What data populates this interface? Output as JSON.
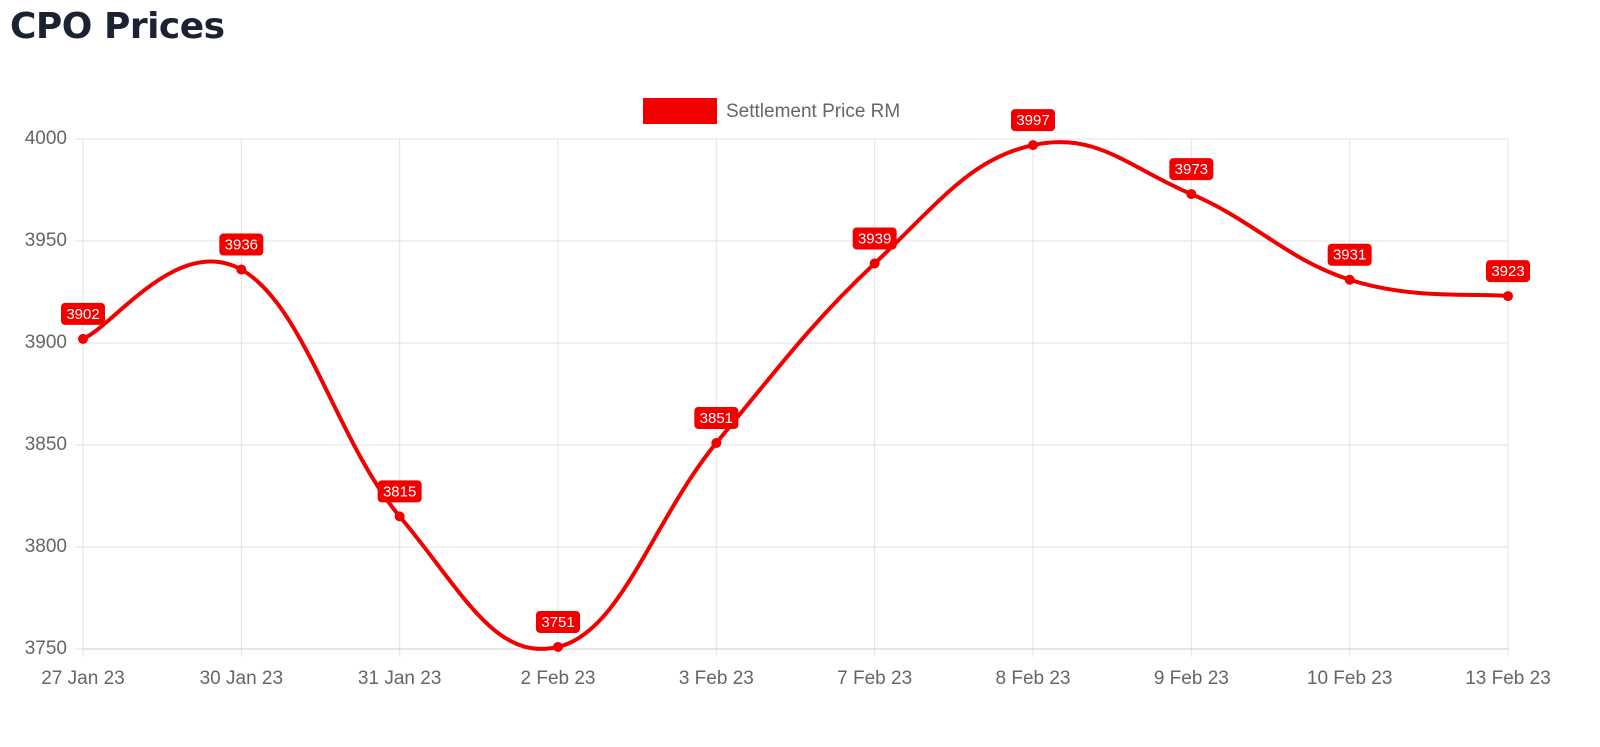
{
  "chart_data": {
    "type": "line",
    "title": "CPO Prices",
    "categories": [
      "27 Jan 23",
      "30 Jan 23",
      "31 Jan 23",
      "2 Feb 23",
      "3 Feb 23",
      "7 Feb 23",
      "8 Feb 23",
      "9 Feb 23",
      "10 Feb 23",
      "13 Feb 23"
    ],
    "series": [
      {
        "name": "Settlement Price RM",
        "color": "#f20000",
        "values": [
          3902,
          3936,
          3815,
          3751,
          3851,
          3939,
          3997,
          3973,
          3931,
          3923
        ]
      }
    ],
    "ylim": [
      3750,
      4000
    ],
    "yticks": [
      3750,
      3800,
      3850,
      3900,
      3950,
      4000
    ],
    "grid": true,
    "legend": "top"
  }
}
